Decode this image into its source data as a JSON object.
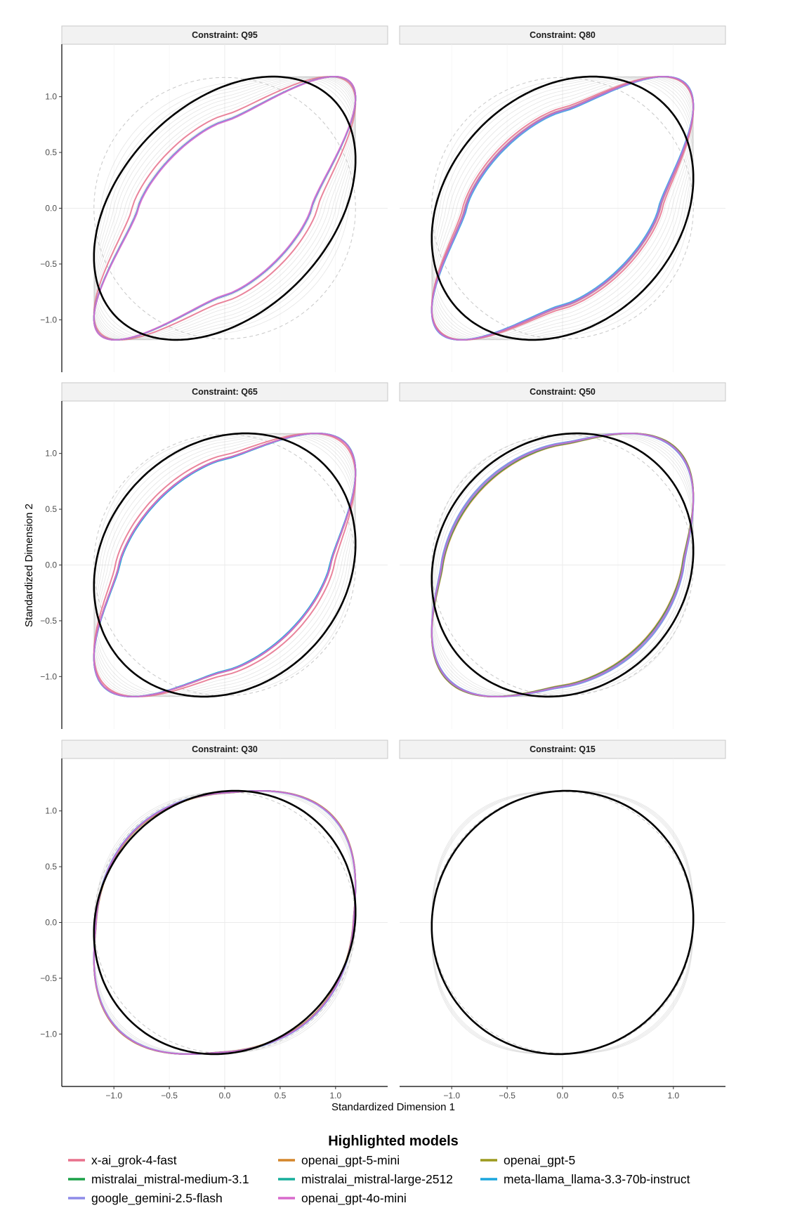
{
  "chart_data": {
    "type": "line",
    "xlabel": "Standardized Dimension 1",
    "ylabel": "Standardized Dimension 2",
    "xlim": [
      -1.47,
      1.47
    ],
    "ylim": [
      -1.47,
      1.47
    ],
    "xticks": [
      -1.0,
      -0.5,
      0.0,
      0.5,
      1.0
    ],
    "yticks": [
      -1.0,
      -0.5,
      0.0,
      0.5,
      1.0
    ],
    "tick_labels": [
      "−1.0",
      "−0.5",
      "0.0",
      "0.5",
      "1.0"
    ],
    "grid": true,
    "radius": 1.18,
    "legend": {
      "title": "Highlighted models",
      "placement": "bottom",
      "items": [
        {
          "model": "x-ai_grok-4-fast",
          "color": "#E8718C"
        },
        {
          "model": "openai_gpt-5-mini",
          "color": "#D4862A"
        },
        {
          "model": "openai_gpt-5",
          "color": "#9C9A1E"
        },
        {
          "model": "mistralai_mistral-medium-3.1",
          "color": "#1BA148"
        },
        {
          "model": "mistralai_mistral-large-2512",
          "color": "#17AE9B"
        },
        {
          "model": "meta-llama_llama-3.3-70b-instruct",
          "color": "#1BA6DD"
        },
        {
          "model": "google_gemini-2.5-flash",
          "color": "#8E8BE8"
        },
        {
          "model": "openai_gpt-4o-mini",
          "color": "#D86ACC"
        }
      ]
    },
    "panels": [
      {
        "title": "Constraint: Q95",
        "reference_corr": 0.37,
        "background_corr": [
          0.35,
          0.42,
          0.48,
          0.53,
          0.58,
          0.62,
          0.66,
          0.7,
          0.73,
          0.76,
          0.79
        ],
        "highlight_corr": {
          "x-ai_grok-4-fast": 0.76,
          "openai_gpt-5-mini": 0.8,
          "openai_gpt-5": 0.8,
          "mistralai_mistral-medium-3.1": 0.8,
          "mistralai_mistral-large-2512": 0.8,
          "meta-llama_llama-3.3-70b-instruct": 0.8,
          "google_gemini-2.5-flash": 0.8,
          "openai_gpt-4o-mini": 0.805
        }
      },
      {
        "title": "Constraint: Q80",
        "reference_corr": 0.23,
        "background_corr": [
          0.25,
          0.32,
          0.38,
          0.44,
          0.5,
          0.55,
          0.6,
          0.64,
          0.68,
          0.71
        ],
        "highlight_corr": {
          "x-ai_grok-4-fast": 0.7,
          "openai_gpt-5-mini": 0.72,
          "openai_gpt-5": 0.72,
          "mistralai_mistral-medium-3.1": 0.725,
          "mistralai_mistral-large-2512": 0.73,
          "meta-llama_llama-3.3-70b-instruct": 0.735,
          "google_gemini-2.5-flash": 0.73,
          "openai_gpt-4o-mini": 0.72
        }
      },
      {
        "title": "Constraint: Q65",
        "reference_corr": 0.16,
        "background_corr": [
          0.2,
          0.27,
          0.33,
          0.39,
          0.45,
          0.5,
          0.55,
          0.6
        ],
        "highlight_corr": {
          "x-ai_grok-4-fast": 0.6,
          "openai_gpt-5-mini": 0.64,
          "openai_gpt-5": 0.64,
          "mistralai_mistral-medium-3.1": 0.645,
          "mistralai_mistral-large-2512": 0.65,
          "meta-llama_llama-3.3-70b-instruct": 0.65,
          "google_gemini-2.5-flash": 0.645,
          "openai_gpt-4o-mini": 0.64
        }
      },
      {
        "title": "Constraint: Q50",
        "reference_corr": 0.11,
        "background_corr": [
          0.15,
          0.2,
          0.25,
          0.3,
          0.35,
          0.4
        ],
        "highlight_corr": {
          "x-ai_grok-4-fast": 0.44,
          "openai_gpt-5-mini": 0.45,
          "openai_gpt-5": 0.44,
          "mistralai_mistral-medium-3.1": 0.44,
          "mistralai_mistral-large-2512": 0.43,
          "meta-llama_llama-3.3-70b-instruct": 0.41,
          "google_gemini-2.5-flash": 0.41,
          "openai_gpt-4o-mini": 0.43
        }
      },
      {
        "title": "Constraint: Q30",
        "reference_corr": 0.08,
        "background_corr": [
          0.1,
          0.13,
          0.16,
          0.19
        ],
        "highlight_corr": {
          "x-ai_grok-4-fast": 0.2,
          "openai_gpt-5-mini": 0.21,
          "openai_gpt-5": 0.2,
          "mistralai_mistral-medium-3.1": 0.2,
          "mistralai_mistral-large-2512": 0.2,
          "meta-llama_llama-3.3-70b-instruct": 0.19,
          "google_gemini-2.5-flash": 0.19,
          "openai_gpt-4o-mini": 0.2
        }
      },
      {
        "title": "Constraint: Q15",
        "reference_corr": 0.03,
        "background_corr": [
          0.0,
          0.02,
          0.04,
          0.06
        ],
        "highlight_corr": {}
      }
    ]
  }
}
